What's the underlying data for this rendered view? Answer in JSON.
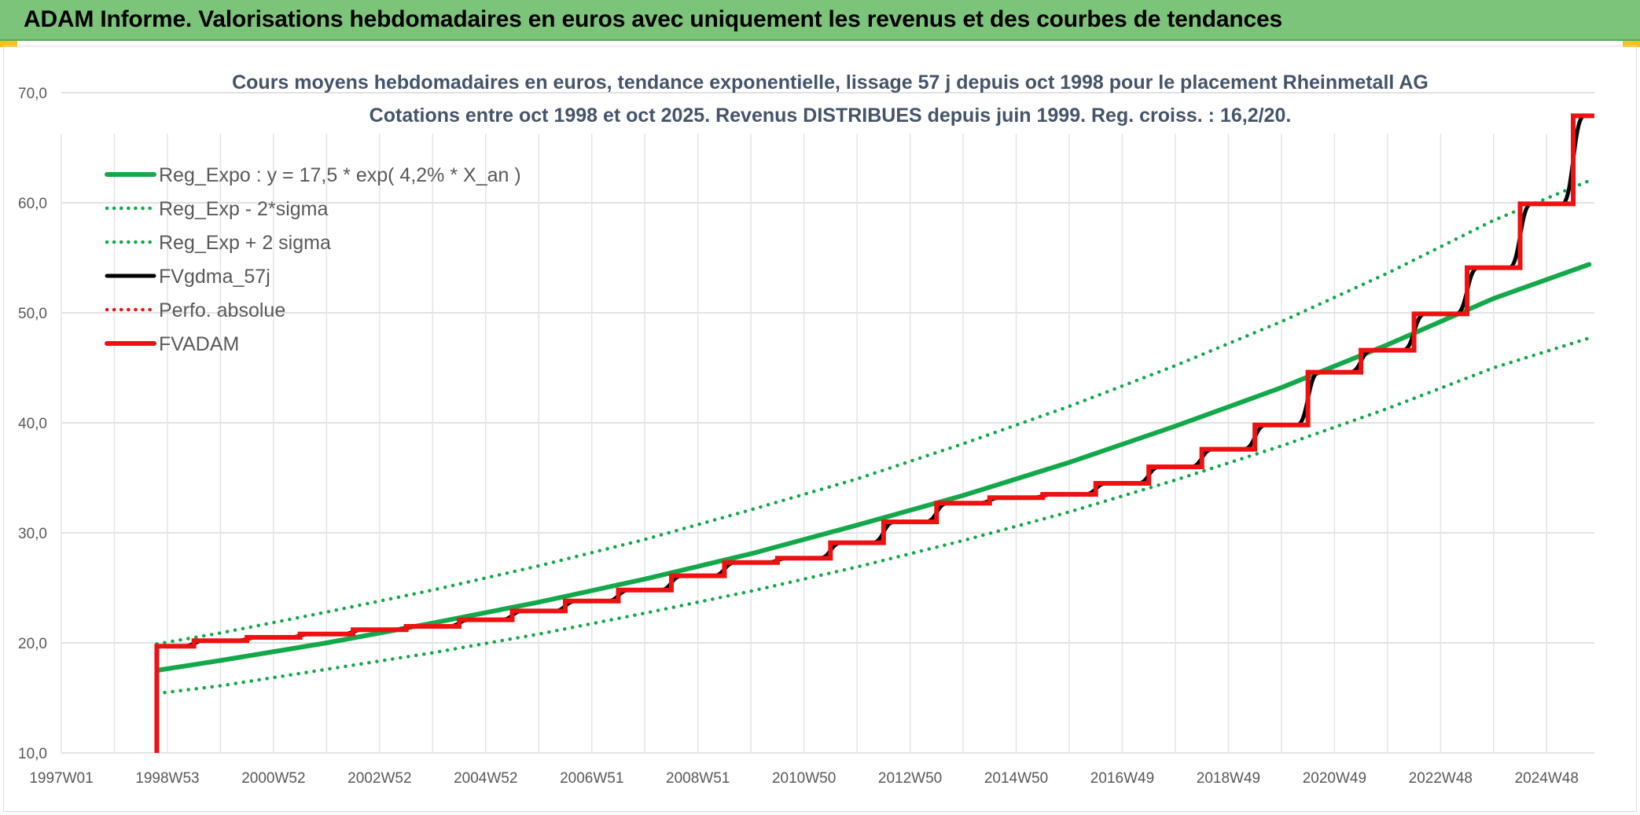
{
  "banner": {
    "title": "ADAM Informe. Valorisations hebdomadaires en euros avec uniquement les revenus et des courbes de tendances"
  },
  "colors": {
    "banner_bg": "#7cc47a",
    "green": "#13a84a",
    "red": "#ee1111",
    "black": "#000000",
    "grid": "#d9d9d9",
    "title": "#44546a",
    "corner": "#f2c318"
  },
  "chart_data": {
    "type": "line",
    "title_line1": "Cours moyens hebdomadaires en euros, tendance exponentielle, lissage 57 j depuis oct 1998 pour le placement Rheinmetall AG",
    "title_line2": "Cotations entre oct 1998 et oct 2025. Revenus DISTRIBUES depuis juin 1999. Reg. croiss. : 16,2/20.",
    "xlabel": "",
    "ylabel": "",
    "ylim": [
      10,
      70
    ],
    "yticks": [
      "10,0",
      "20,0",
      "30,0",
      "40,0",
      "50,0",
      "60,0",
      "70,0"
    ],
    "xlim": [
      1997.0,
      2025.9
    ],
    "xticks": [
      {
        "label": "1997W01",
        "year": 1997.0
      },
      {
        "label": "1998W53",
        "year": 1999.0
      },
      {
        "label": "2000W52",
        "year": 2001.0
      },
      {
        "label": "2002W52",
        "year": 2003.0
      },
      {
        "label": "2004W52",
        "year": 2005.0
      },
      {
        "label": "2006W51",
        "year": 2007.0
      },
      {
        "label": "2008W51",
        "year": 2009.0
      },
      {
        "label": "2010W50",
        "year": 2011.0
      },
      {
        "label": "2012W50",
        "year": 2013.0
      },
      {
        "label": "2014W50",
        "year": 2015.0
      },
      {
        "label": "2016W49",
        "year": 2017.0
      },
      {
        "label": "2018W49",
        "year": 2019.0
      },
      {
        "label": "2020W49",
        "year": 2021.0
      },
      {
        "label": "2022W48",
        "year": 2023.0
      },
      {
        "label": "2024W48",
        "year": 2025.0
      }
    ],
    "grid": true,
    "legend_position": "top-left",
    "series": [
      {
        "name": "Reg_Expo : y = 17,5 * exp( 4,2% *  X_an )",
        "style": "solid-thick",
        "color": "#13a84a",
        "x": [
          1998.8,
          2000,
          2002,
          2004,
          2006,
          2008,
          2010,
          2012,
          2014,
          2016,
          2018,
          2020,
          2022,
          2024,
          2025.8
        ],
        "y": [
          17.5,
          18.4,
          20.0,
          21.8,
          23.7,
          25.8,
          28.1,
          30.7,
          33.4,
          36.4,
          39.7,
          43.2,
          47.1,
          51.3,
          54.4
        ]
      },
      {
        "name": "Reg_Exp - 2*sigma",
        "style": "dotted",
        "color": "#13a84a",
        "x": [
          1998.8,
          2000,
          2002,
          2004,
          2006,
          2008,
          2010,
          2012,
          2014,
          2016,
          2018,
          2020,
          2022,
          2024,
          2025.8
        ],
        "y": [
          15.4,
          16.1,
          17.6,
          19.1,
          20.8,
          22.7,
          24.7,
          26.9,
          29.3,
          31.9,
          34.8,
          37.9,
          41.3,
          45.0,
          47.7
        ]
      },
      {
        "name": "Reg_Exp + 2 sigma",
        "style": "dotted",
        "color": "#13a84a",
        "x": [
          1998.8,
          2000,
          2002,
          2004,
          2006,
          2008,
          2010,
          2012,
          2014,
          2016,
          2018,
          2020,
          2022,
          2024,
          2025.8
        ],
        "y": [
          19.9,
          20.9,
          22.8,
          24.8,
          27.0,
          29.4,
          32.1,
          34.9,
          38.1,
          41.5,
          45.2,
          49.2,
          53.6,
          58.4,
          62.0
        ]
      },
      {
        "name": "FVgdma_57j",
        "style": "smoothed-step",
        "color": "#000000",
        "steps": [
          [
            1998.8,
            19.7
          ],
          [
            1999.5,
            20.2
          ],
          [
            2000.5,
            20.5
          ],
          [
            2001.5,
            20.8
          ],
          [
            2002.5,
            21.2
          ],
          [
            2003.5,
            21.5
          ],
          [
            2004.5,
            22.1
          ],
          [
            2005.5,
            22.9
          ],
          [
            2006.5,
            23.8
          ],
          [
            2007.5,
            24.8
          ],
          [
            2008.5,
            26.1
          ],
          [
            2009.5,
            27.3
          ],
          [
            2010.5,
            27.7
          ],
          [
            2011.5,
            29.1
          ],
          [
            2012.5,
            31.0
          ],
          [
            2013.5,
            32.7
          ],
          [
            2014.5,
            33.2
          ],
          [
            2015.5,
            33.5
          ],
          [
            2016.5,
            34.5
          ],
          [
            2017.5,
            36.0
          ],
          [
            2018.5,
            37.6
          ],
          [
            2019.5,
            39.8
          ],
          [
            2020.5,
            44.6
          ],
          [
            2021.5,
            46.6
          ],
          [
            2022.5,
            49.9
          ],
          [
            2023.5,
            54.1
          ],
          [
            2024.5,
            59.9
          ],
          [
            2025.5,
            67.9
          ]
        ],
        "end_x": 2025.9
      },
      {
        "name": "Perfo. absolue",
        "style": "dotted",
        "color": "#ee1111",
        "x": [],
        "y": []
      },
      {
        "name": "FVADAM",
        "style": "step-thick",
        "color": "#ee1111",
        "start": [
          1998.8,
          10.0
        ],
        "steps": [
          [
            1998.8,
            19.7
          ],
          [
            1999.5,
            20.2
          ],
          [
            2000.5,
            20.5
          ],
          [
            2001.5,
            20.8
          ],
          [
            2002.5,
            21.2
          ],
          [
            2003.5,
            21.5
          ],
          [
            2004.5,
            22.1
          ],
          [
            2005.5,
            22.9
          ],
          [
            2006.5,
            23.8
          ],
          [
            2007.5,
            24.8
          ],
          [
            2008.5,
            26.1
          ],
          [
            2009.5,
            27.3
          ],
          [
            2010.5,
            27.7
          ],
          [
            2011.5,
            29.1
          ],
          [
            2012.5,
            31.0
          ],
          [
            2013.5,
            32.7
          ],
          [
            2014.5,
            33.2
          ],
          [
            2015.5,
            33.5
          ],
          [
            2016.5,
            34.5
          ],
          [
            2017.5,
            36.0
          ],
          [
            2018.5,
            37.6
          ],
          [
            2019.5,
            39.8
          ],
          [
            2020.5,
            44.6
          ],
          [
            2021.5,
            46.6
          ],
          [
            2022.5,
            49.9
          ],
          [
            2023.5,
            54.1
          ],
          [
            2024.5,
            59.9
          ],
          [
            2025.5,
            67.9
          ]
        ],
        "end_x": 2025.9
      }
    ]
  }
}
